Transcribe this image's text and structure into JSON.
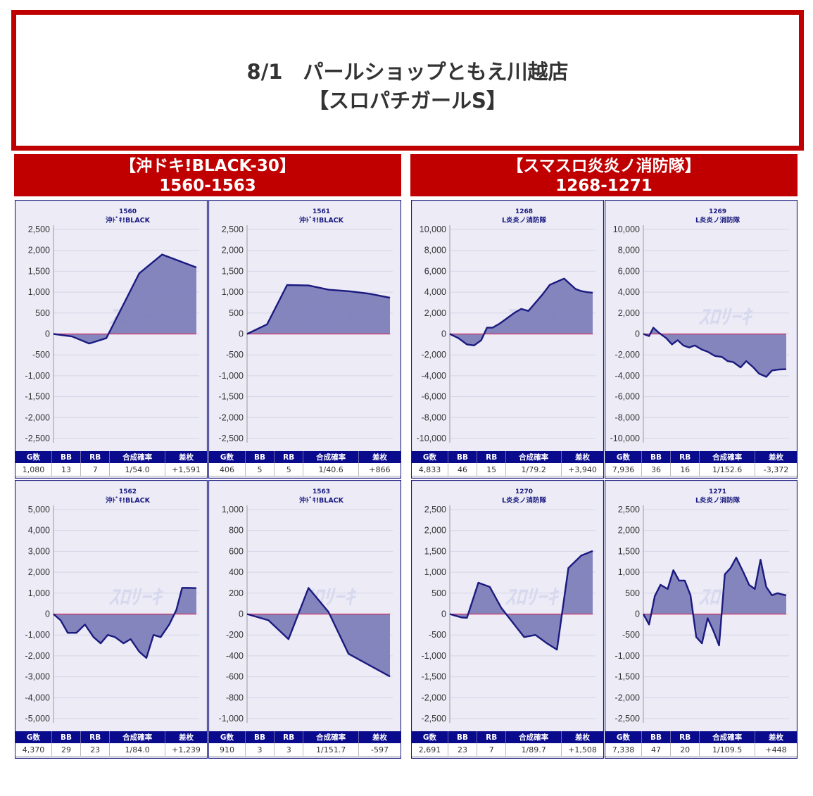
{
  "header": {
    "line1": "8/1　パールショップともえ川越店",
    "line2": "【スロパチガールS】"
  },
  "groups": [
    {
      "title": "【沖ドキ!BLACK-30】",
      "range": "1560-1563"
    },
    {
      "title": "【スマスロ炎炎ノ消防隊】",
      "range": "1268-1271"
    }
  ],
  "stat_headers": [
    "G数",
    "BB",
    "RB",
    "合成確率",
    "差枚"
  ],
  "colors": {
    "line": "#1a1a80",
    "fill": "#7a7ab8",
    "zero": "#cc3366",
    "plot_bg": "#ecebf6",
    "border": "#1a1a80",
    "header_red": "#c00000"
  },
  "panels": [
    {
      "number": "1560",
      "machine": "沖ﾄﾞｷ!BLACK",
      "stats": [
        "1,080",
        "13",
        "7",
        "1/54.0",
        "+1,591"
      ]
    },
    {
      "number": "1561",
      "machine": "沖ﾄﾞｷ!BLACK",
      "stats": [
        "406",
        "5",
        "5",
        "1/40.6",
        "+866"
      ]
    },
    {
      "number": "1268",
      "machine": "L炎炎ノ消防隊",
      "stats": [
        "4,833",
        "46",
        "15",
        "1/79.2",
        "+3,940"
      ]
    },
    {
      "number": "1269",
      "machine": "L炎炎ノ消防隊",
      "stats": [
        "7,936",
        "36",
        "16",
        "1/152.6",
        "-3,372"
      ]
    },
    {
      "number": "1562",
      "machine": "沖ﾄﾞｷ!BLACK",
      "stats": [
        "4,370",
        "29",
        "23",
        "1/84.0",
        "+1,239"
      ]
    },
    {
      "number": "1563",
      "machine": "沖ﾄﾞｷ!BLACK",
      "stats": [
        "910",
        "3",
        "3",
        "1/151.7",
        "-597"
      ]
    },
    {
      "number": "1270",
      "machine": "L炎炎ノ消防隊",
      "stats": [
        "2,691",
        "23",
        "7",
        "1/89.7",
        "+1,508"
      ]
    },
    {
      "number": "1271",
      "machine": "L炎炎ノ消防隊",
      "stats": [
        "7,338",
        "47",
        "20",
        "1/109.5",
        "+448"
      ]
    }
  ],
  "chart_data": [
    {
      "type": "area",
      "title": "1560 沖ﾄﾞｷ!BLACK",
      "ylim": [
        -2500,
        2500
      ],
      "ticks": [
        2500,
        2000,
        1500,
        1000,
        500,
        0,
        -500,
        -1000,
        -1500,
        -2000,
        -2500
      ],
      "x": [
        0,
        0.13,
        0.25,
        0.37,
        0.6,
        0.76,
        1
      ],
      "y": [
        0,
        -60,
        -230,
        -100,
        1450,
        1900,
        1591
      ]
    },
    {
      "type": "area",
      "title": "1561 沖ﾄﾞｷ!BLACK",
      "ylim": [
        -2500,
        2500
      ],
      "ticks": [
        2500,
        2000,
        1500,
        1000,
        500,
        0,
        -500,
        -1000,
        -1500,
        -2000,
        -2500
      ],
      "x": [
        0,
        0.14,
        0.28,
        0.43,
        0.57,
        0.72,
        0.86,
        1
      ],
      "y": [
        0,
        230,
        1170,
        1160,
        1060,
        1020,
        960,
        866
      ]
    },
    {
      "type": "area",
      "title": "1268 L炎炎ノ消防隊",
      "ylim": [
        -10000,
        10000
      ],
      "ticks": [
        10000,
        8000,
        6000,
        4000,
        2000,
        0,
        -2000,
        -4000,
        -6000,
        -8000,
        -10000
      ],
      "x": [
        0,
        0.06,
        0.12,
        0.17,
        0.22,
        0.26,
        0.3,
        0.35,
        0.4,
        0.45,
        0.5,
        0.55,
        0.6,
        0.65,
        0.7,
        0.75,
        0.8,
        0.84,
        0.88,
        0.92,
        0.96,
        1
      ],
      "y": [
        0,
        -400,
        -1000,
        -1100,
        -600,
        600,
        600,
        1000,
        1500,
        2000,
        2400,
        2200,
        3000,
        3800,
        4700,
        5000,
        5300,
        4800,
        4300,
        4100,
        4000,
        3940
      ]
    },
    {
      "type": "area",
      "title": "1269 L炎炎ノ消防隊",
      "ylim": [
        -10000,
        10000
      ],
      "ticks": [
        10000,
        8000,
        6000,
        4000,
        2000,
        0,
        -2000,
        -4000,
        -6000,
        -8000,
        -10000
      ],
      "x": [
        0,
        0.04,
        0.07,
        0.11,
        0.16,
        0.2,
        0.24,
        0.28,
        0.32,
        0.36,
        0.41,
        0.45,
        0.5,
        0.55,
        0.59,
        0.63,
        0.68,
        0.72,
        0.77,
        0.81,
        0.86,
        0.9,
        0.95,
        1
      ],
      "y": [
        0,
        -200,
        600,
        100,
        -400,
        -1000,
        -600,
        -1100,
        -1300,
        -1100,
        -1500,
        -1700,
        -2100,
        -2200,
        -2600,
        -2700,
        -3200,
        -2600,
        -3200,
        -3800,
        -4100,
        -3500,
        -3400,
        -3372
      ]
    },
    {
      "type": "area",
      "title": "1562 沖ﾄﾞｷ!BLACK",
      "ylim": [
        -5000,
        5000
      ],
      "ticks": [
        5000,
        4000,
        3000,
        2000,
        1000,
        0,
        -1000,
        -2000,
        -3000,
        -4000,
        -5000
      ],
      "x": [
        0,
        0.05,
        0.1,
        0.16,
        0.22,
        0.28,
        0.33,
        0.38,
        0.43,
        0.49,
        0.54,
        0.6,
        0.65,
        0.7,
        0.75,
        0.81,
        0.86,
        0.9,
        0.95,
        1
      ],
      "y": [
        0,
        -300,
        -900,
        -900,
        -500,
        -1100,
        -1400,
        -1000,
        -1100,
        -1400,
        -1200,
        -1800,
        -2100,
        -1000,
        -1100,
        -500,
        200,
        1250,
        1250,
        1239
      ]
    },
    {
      "type": "area",
      "title": "1563 沖ﾄﾞｷ!BLACK",
      "ylim": [
        -1000,
        1000
      ],
      "ticks": [
        1000,
        800,
        600,
        400,
        200,
        0,
        -200,
        -400,
        -600,
        -800,
        -1000
      ],
      "x": [
        0,
        0.15,
        0.29,
        0.43,
        0.57,
        0.71,
        1
      ],
      "y": [
        0,
        -60,
        -240,
        250,
        20,
        -380,
        -597
      ]
    },
    {
      "type": "area",
      "title": "1270 L炎炎ノ消防隊",
      "ylim": [
        -2500,
        2500
      ],
      "ticks": [
        2500,
        2000,
        1500,
        1000,
        500,
        0,
        -500,
        -1000,
        -1500,
        -2000,
        -2500
      ],
      "x": [
        0,
        0.08,
        0.12,
        0.2,
        0.28,
        0.36,
        0.44,
        0.52,
        0.6,
        0.68,
        0.75,
        0.83,
        0.92,
        1
      ],
      "y": [
        0,
        -80,
        -90,
        750,
        650,
        150,
        -200,
        -550,
        -500,
        -700,
        -850,
        1100,
        1400,
        1508
      ]
    },
    {
      "type": "area",
      "title": "1271 L炎炎ノ消防隊",
      "ylim": [
        -2500,
        2500
      ],
      "ticks": [
        2500,
        2000,
        1500,
        1000,
        500,
        0,
        -500,
        -1000,
        -1500,
        -2000,
        -2500
      ],
      "x": [
        0,
        0.04,
        0.08,
        0.12,
        0.17,
        0.21,
        0.25,
        0.29,
        0.33,
        0.37,
        0.41,
        0.45,
        0.49,
        0.53,
        0.57,
        0.61,
        0.65,
        0.7,
        0.74,
        0.78,
        0.82,
        0.86,
        0.9,
        0.94,
        0.97,
        1
      ],
      "y": [
        0,
        -250,
        430,
        700,
        600,
        1050,
        800,
        800,
        450,
        -550,
        -700,
        -100,
        -400,
        -750,
        950,
        1100,
        1350,
        1000,
        700,
        600,
        1300,
        650,
        450,
        500,
        470,
        448
      ]
    }
  ]
}
